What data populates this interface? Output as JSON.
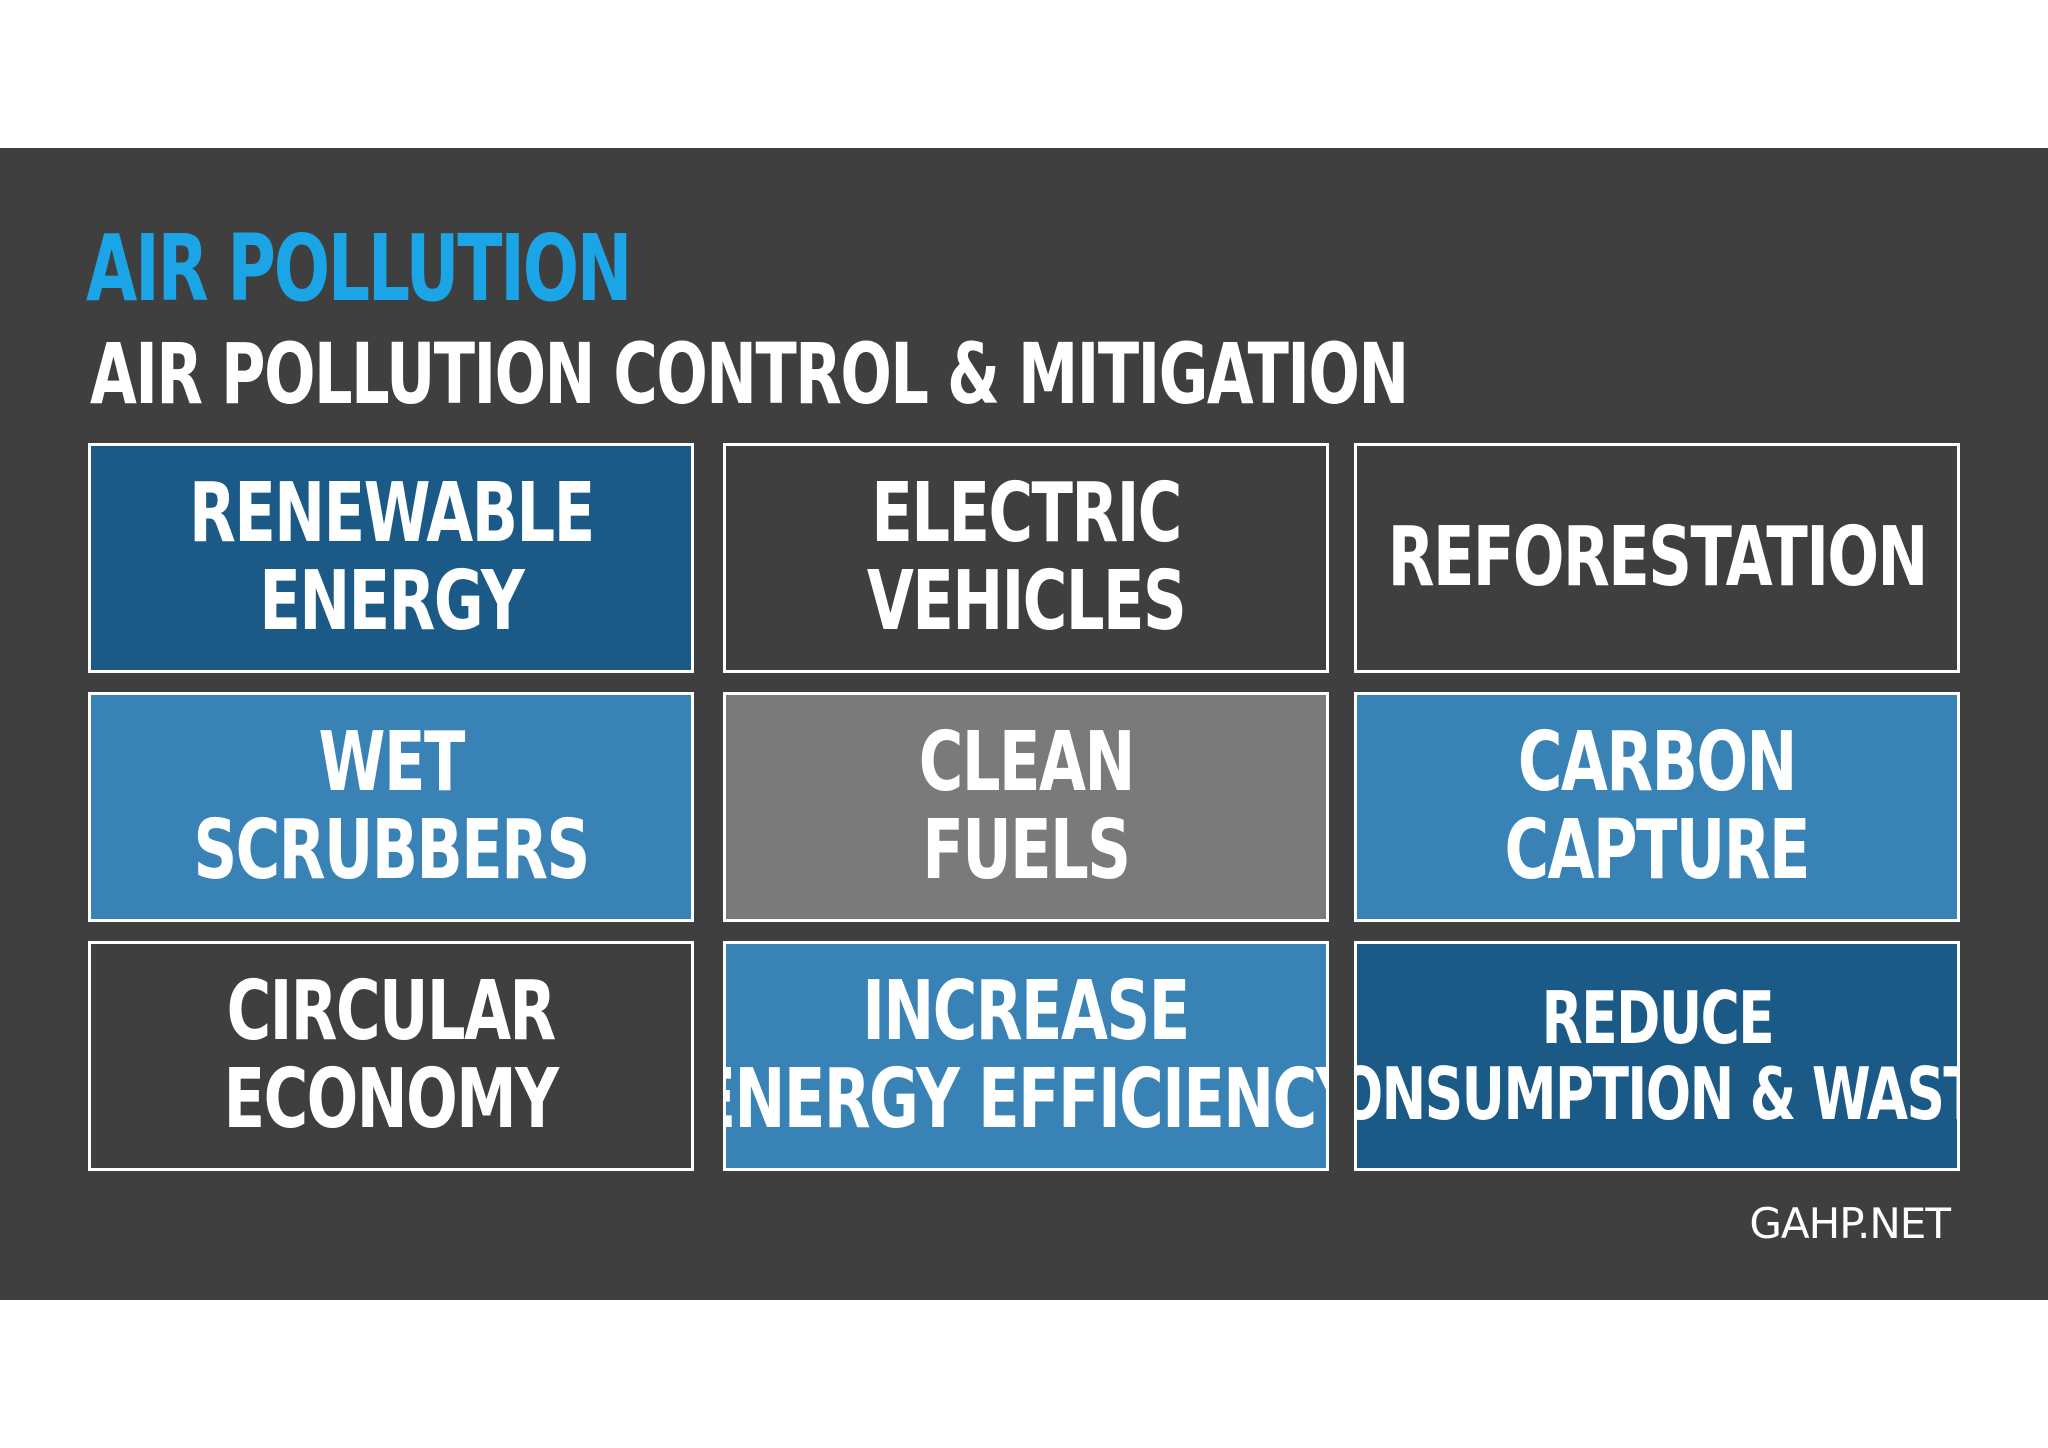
{
  "header": {
    "title": "AIR POLLUTION",
    "subtitle": "AIR POLLUTION CONTROL & MITIGATION"
  },
  "colors": {
    "title": "#1ba4e6",
    "background": "#3f3f3f",
    "dark_blue": "#1b5a86",
    "mid_blue": "#3882b6",
    "gray": "#7a7a7a",
    "text": "#ffffff"
  },
  "cards": [
    {
      "lines": [
        "RENEWABLE",
        "ENERGY"
      ],
      "color": "dark_blue"
    },
    {
      "lines": [
        "ELECTRIC",
        "VEHICLES"
      ],
      "color": "background"
    },
    {
      "lines": [
        "REFORESTATION"
      ],
      "color": "background"
    },
    {
      "lines": [
        "WET",
        "SCRUBBERS"
      ],
      "color": "mid_blue"
    },
    {
      "lines": [
        "CLEAN",
        "FUELS"
      ],
      "color": "gray"
    },
    {
      "lines": [
        "CARBON",
        "CAPTURE"
      ],
      "color": "mid_blue"
    },
    {
      "lines": [
        "CIRCULAR",
        "ECONOMY"
      ],
      "color": "background"
    },
    {
      "lines": [
        "INCREASE",
        "ENERGY EFFICIENCY"
      ],
      "color": "mid_blue"
    },
    {
      "lines": [
        "REDUCE",
        "CONSUMPTION & WASTE"
      ],
      "color": "dark_blue"
    }
  ],
  "footer": {
    "source": "GAHP.NET"
  }
}
